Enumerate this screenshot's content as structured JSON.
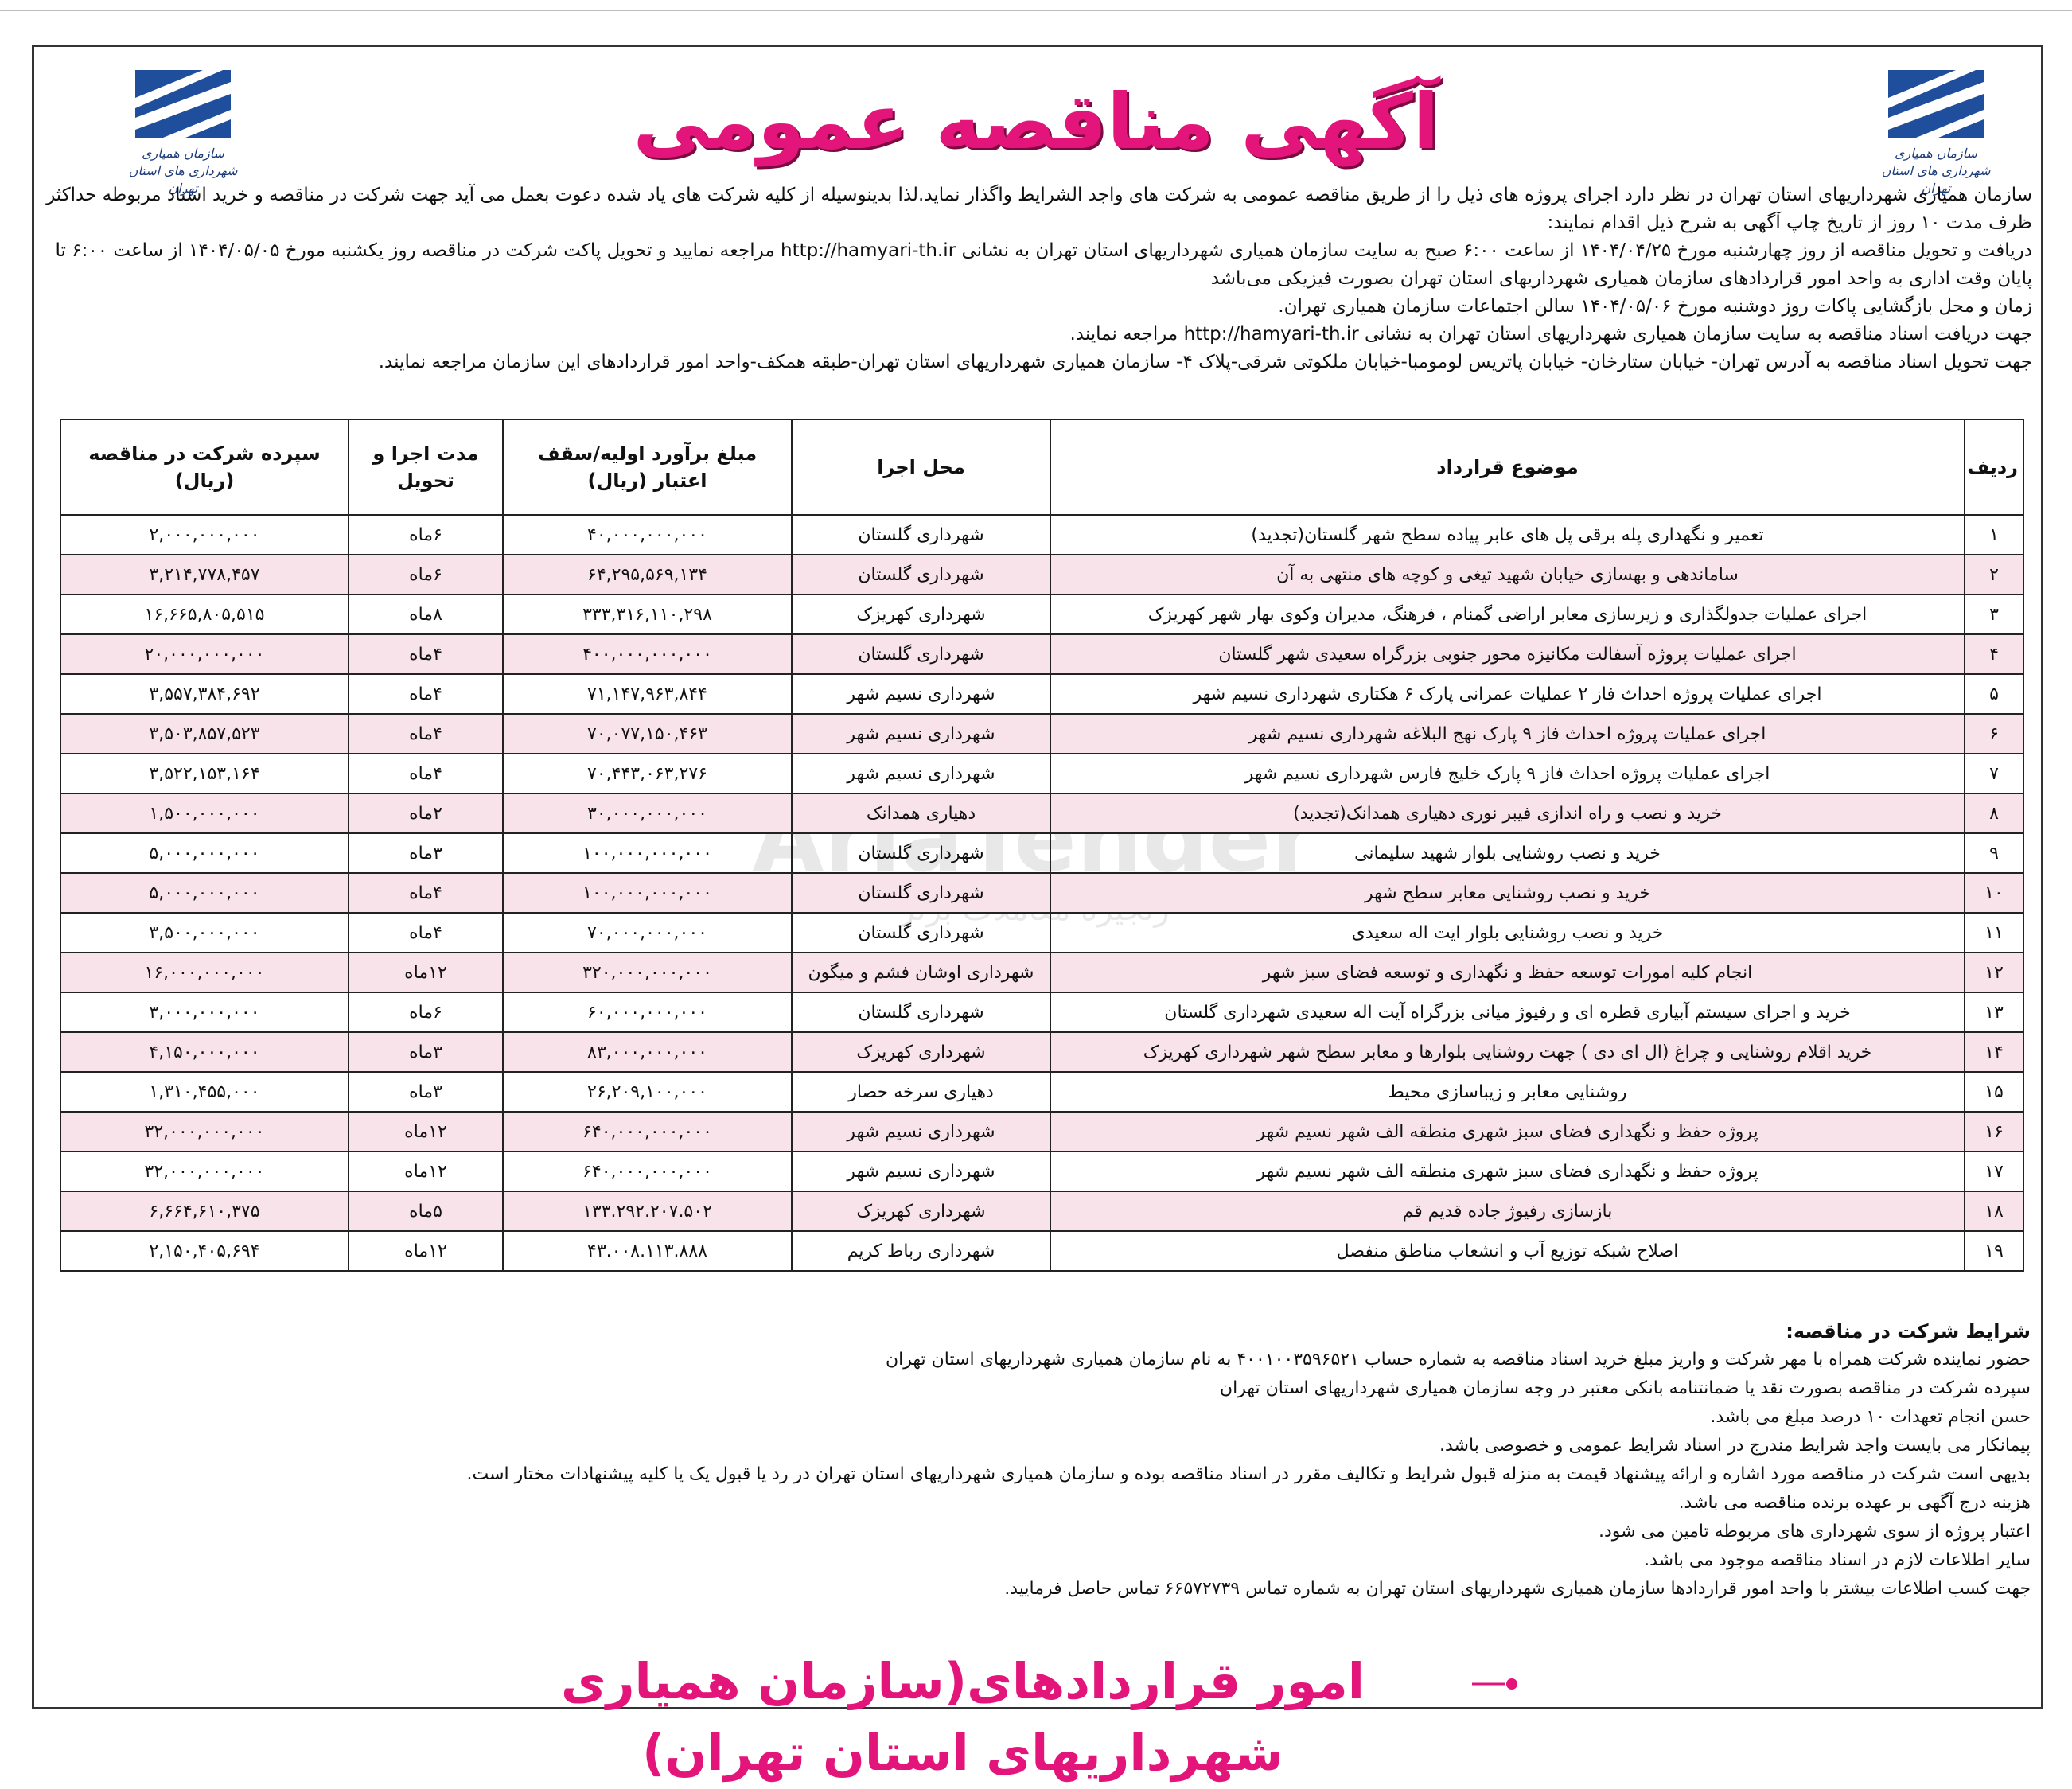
{
  "header": {
    "title": "آگهی مناقصه عمومی",
    "logo_caption": "سازمان همیاری شهرداری های استان تهران"
  },
  "intro": [
    "سازمان همیاری شهرداریهای استان تهران در نظر دارد اجرای پروژه های ذیل را از طریق مناقصه عمومی به شرکت های واجد الشرایط واگذار نماید.لذا بدینوسیله از کلیه شرکت های یاد شده دعوت بعمل می آید جهت شرکت در مناقصه و خرید اسناد مربوطه حداکثر ظرف مدت ۱۰ روز  از تاریخ چاپ آگهی به شرح ذیل اقدام نمایند:",
    "دریافت و تحویل مناقصه از روز چهارشنبه مورخ ۱۴۰۴/۰۴/۲۵ از ساعت ۶:۰۰ صبح به سایت سازمان همیاری شهرداریهای استان تهران به نشانی http://hamyari-th.ir مراجعه نمایید و تحویل پاکت شرکت در مناقصه روز یکشنبه مورخ ۱۴۰۴/۰۵/۰۵ از ساعت ۶:۰۰ تا پایان وقت اداری به واحد امور قراردادهای سازمان همیاری شهرداریهای استان تهران بصورت فیزیکی می‌باشد",
    "زمان و محل بازگشایی پاکات روز دوشنبه مورخ ۱۴۰۴/۰۵/۰۶ سالن اجتماعات سازمان همیاری تهران.",
    "جهت دریافت اسناد مناقصه به سایت سازمان همیاری شهرداریهای استان تهران به نشانی http://hamyari-th.ir مراجعه نمایند.",
    "جهت تحویل اسناد مناقصه به آدرس تهران- خیابان ستارخان- خیابان پاتریس لومومبا-خیابان ملکوتی شرقی-پلاک ۴- سازمان همیاری شهرداریهای استان تهران-طبقه همکف-واحد امور قراردادهای این سازمان مراجعه نمایند."
  ],
  "table": {
    "columns": [
      "ردیف",
      "موضوع قرارداد",
      "محل اجرا",
      "مبلغ برآورد اولیه/سقف اعتبار (ریال)",
      "مدت اجرا و تحویل",
      "سپرده شرکت در مناقصه (ریال)"
    ],
    "rows": [
      [
        "۱",
        "تعمیر و نگهداری پله برقی پل های عابر پیاده سطح شهر گلستان(تجدید)",
        "شهرداری گلستان",
        "۴۰,۰۰۰,۰۰۰,۰۰۰",
        "۶ماه",
        "۲,۰۰۰,۰۰۰,۰۰۰"
      ],
      [
        "۲",
        "ساماندهی و بهسازی خیابان شهید تیغی و کوچه های منتهی به آن",
        "شهرداری گلستان",
        "۶۴,۲۹۵,۵۶۹,۱۳۴",
        "۶ماه",
        "۳,۲۱۴,۷۷۸,۴۵۷"
      ],
      [
        "۳",
        "اجرای عملیات جدولگذاری و زیرسازی معابر اراضی گمنام ، فرهنگ، مدیران وکوی بهار شهر کهریزک",
        "شهرداری کهریزک",
        "۳۳۳,۳۱۶,۱۱۰,۲۹۸",
        "۸ماه",
        "۱۶,۶۶۵,۸۰۵,۵۱۵"
      ],
      [
        "۴",
        "اجرای عملیات پروژه آسفالت مکانیزه محور جنوبی بزرگراه سعیدی شهر گلستان",
        "شهرداری گلستان",
        "۴۰۰,۰۰۰,۰۰۰,۰۰۰",
        "۴ماه",
        "۲۰,۰۰۰,۰۰۰,۰۰۰"
      ],
      [
        "۵",
        "اجرای عملیات پروژه احداث فاز ۲ عملیات عمرانی پارک ۶ هکتاری شهرداری نسیم شهر",
        "شهرداری نسیم شهر",
        "۷۱,۱۴۷,۹۶۳,۸۴۴",
        "۴ماه",
        "۳,۵۵۷,۳۸۴,۶۹۲"
      ],
      [
        "۶",
        "اجرای عملیات پروژه احداث فاز ۹ پارک نهج البلاغه شهرداری نسیم شهر",
        "شهرداری نسیم شهر",
        "۷۰,۰۷۷,۱۵۰,۴۶۳",
        "۴ماه",
        "۳,۵۰۳,۸۵۷,۵۲۳"
      ],
      [
        "۷",
        "اجرای عملیات پروژه احداث فاز ۹ پارک خلیج فارس شهرداری نسیم شهر",
        "شهرداری نسیم شهر",
        "۷۰,۴۴۳,۰۶۳,۲۷۶",
        "۴ماه",
        "۳,۵۲۲,۱۵۳,۱۶۴"
      ],
      [
        "۸",
        "خرید و نصب و راه اندازی فیبر نوری دهیاری همدانک(تجدید)",
        "دهیاری همدانک",
        "۳۰,۰۰۰,۰۰۰,۰۰۰",
        "۲ماه",
        "۱,۵۰۰,۰۰۰,۰۰۰"
      ],
      [
        "۹",
        "خرید و نصب روشنایی بلوار شهید سلیمانی",
        "شهرداری گلستان",
        "۱۰۰,۰۰۰,۰۰۰,۰۰۰",
        "۳ماه",
        "۵,۰۰۰,۰۰۰,۰۰۰"
      ],
      [
        "۱۰",
        "خرید و نصب روشنایی معابر سطح شهر",
        "شهرداری گلستان",
        "۱۰۰,۰۰۰,۰۰۰,۰۰۰",
        "۴ماه",
        "۵,۰۰۰,۰۰۰,۰۰۰"
      ],
      [
        "۱۱",
        "خرید و نصب روشنایی بلوار ایت اله سعیدی",
        "شهرداری گلستان",
        "۷۰,۰۰۰,۰۰۰,۰۰۰",
        "۴ماه",
        "۳,۵۰۰,۰۰۰,۰۰۰"
      ],
      [
        "۱۲",
        "انجام کلیه امورات توسعه حفظ و نگهداری و توسعه فضای سبز شهر",
        "شهرداری اوشان فشم و میگون",
        "۳۲۰,۰۰۰,۰۰۰,۰۰۰",
        "۱۲ماه",
        "۱۶,۰۰۰,۰۰۰,۰۰۰"
      ],
      [
        "۱۳",
        "خرید و اجرای سیستم آبیاری قطره ای و رفیوژ میانی بزرگراه آیت اله سعیدی شهرداری گلستان",
        "شهرداری گلستان",
        "۶۰,۰۰۰,۰۰۰,۰۰۰",
        "۶ماه",
        "۳,۰۰۰,۰۰۰,۰۰۰"
      ],
      [
        "۱۴",
        "خرید اقلام روشنایی و چراغ (ال ای دی ) جهت روشنایی بلوارها و معابر سطح شهر شهرداری کهریزک",
        "شهرداری کهریزک",
        "۸۳,۰۰۰,۰۰۰,۰۰۰",
        "۳ماه",
        "۴,۱۵۰,۰۰۰,۰۰۰"
      ],
      [
        "۱۵",
        "روشنایی معابر و زیباسازی محیط",
        "دهیاری سرخه حصار",
        "۲۶,۲۰۹,۱۰۰,۰۰۰",
        "۳ماه",
        "۱,۳۱۰,۴۵۵,۰۰۰"
      ],
      [
        "۱۶",
        "پروژه حفظ و نگهداری فضای سبز شهری منطقه الف شهر نسیم شهر",
        "شهرداری نسیم شهر",
        "۶۴۰,۰۰۰,۰۰۰,۰۰۰",
        "۱۲ماه",
        "۳۲,۰۰۰,۰۰۰,۰۰۰"
      ],
      [
        "۱۷",
        "پروژه حفظ و نگهداری فضای سبز شهری منطقه الف شهر نسیم شهر",
        "شهرداری نسیم شهر",
        "۶۴۰,۰۰۰,۰۰۰,۰۰۰",
        "۱۲ماه",
        "۳۲,۰۰۰,۰۰۰,۰۰۰"
      ],
      [
        "۱۸",
        "بازسازی رفیوژ جاده قدیم قم",
        "شهرداری کهریزک",
        "۱۳۳.۲۹۲.۲۰۷.۵۰۲",
        "۵ماه",
        "۶,۶۶۴,۶۱۰,۳۷۵"
      ],
      [
        "۱۹",
        "اصلاح شبکه توزیع آب و انشعاب مناطق منفصل",
        "شهرداری رباط کریم",
        "۴۳.۰۰۸.۱۱۳.۸۸۸",
        "۱۲ماه",
        "۲,۱۵۰,۴۰۵,۶۹۴"
      ]
    ]
  },
  "conditions": {
    "title": "شرایط شرکت در مناقصه:",
    "items": [
      "حضور نماینده شرکت همراه با مهر شرکت و واریز مبلغ خرید اسناد مناقصه به شماره حساب ۴۰۰۱۰۰۳۵۹۶۵۲۱ به نام سازمان همیاری شهرداریهای استان تهران",
      "سپرده شرکت در مناقصه بصورت نقد یا ضمانتنامه بانکی معتبر در وجه سازمان همیاری شهرداریهای استان تهران",
      "حسن انجام تعهدات ۱۰ درصد مبلغ می باشد.",
      "پیمانکار می بایست واجد شرایط مندرج در اسناد شرایط عمومی و خصوصی باشد.",
      "بدیهی است شرکت در مناقصه مورد اشاره و ارائه پیشنهاد قیمت به منزله قبول شرایط و تکالیف مقرر در اسناد مناقصه بوده و سازمان همیاری شهرداریهای استان تهران در رد یا قبول یک یا کلیه پیشنهادات مختار است.",
      "هزینه درج آگهی بر عهده برنده مناقصه می باشد.",
      "اعتبار پروژه از سوی شهرداری های مربوطه تامین می شود.",
      "سایر اطلاعات لازم در اسناد مناقصه موجود می باشد.",
      "جهت کسب اطلاعات بیشتر با واحد امور قراردادها سازمان همیاری شهرداریهای استان تهران به شماره تماس ۶۶۵۷۲۷۳۹ تماس حاصل فرمایید."
    ]
  },
  "footer": "امور قراردادهای(سازمان همیاری شهرداریهای استان تهران)",
  "watermark": {
    "brand": "AriaTender",
    "tagline": "زنجیره معاملات برتر"
  }
}
